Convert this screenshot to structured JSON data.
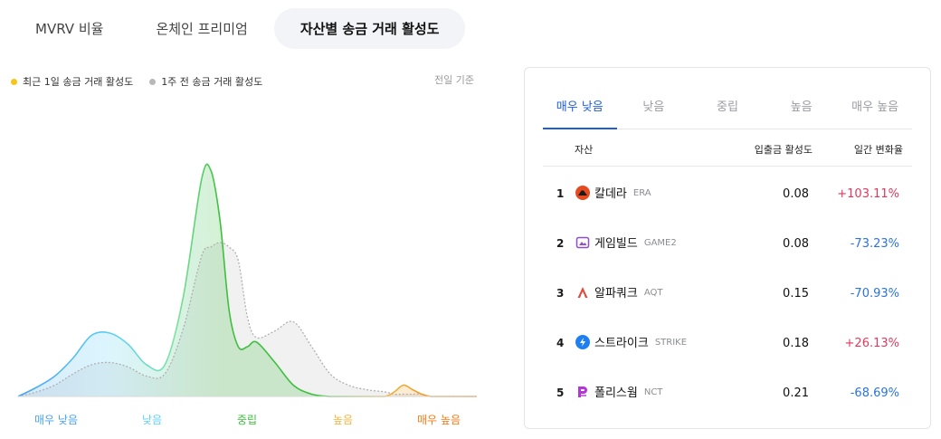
{
  "tabs": [
    {
      "label": "MVRV 비율"
    },
    {
      "label": "온체인 프리미엄"
    },
    {
      "label": "자산별 송금 거래 활성도"
    }
  ],
  "legend": {
    "current": {
      "label": "최근 1일 송금 거래 활성도",
      "color": "#f5c518"
    },
    "previous": {
      "label": "1주 전 송금 거래 활성도",
      "color": "#b8b8b8"
    }
  },
  "basis_label": "전일 기준",
  "chart_data": {
    "type": "area",
    "categories": [
      "매우 낮음",
      "낮음",
      "중립",
      "높음",
      "매우 높음"
    ],
    "category_colors": [
      "#4aa3f0",
      "#5fd2f5",
      "#3fbf3f",
      "#f0b43c",
      "#f07b14"
    ],
    "x": [
      0.0,
      0.04,
      0.08,
      0.12,
      0.16,
      0.2,
      0.24,
      0.28,
      0.32,
      0.36,
      0.4,
      0.42,
      0.44,
      0.46,
      0.48,
      0.5,
      0.52,
      0.56,
      0.6,
      0.64,
      0.68,
      0.72,
      0.76,
      0.8,
      0.82,
      0.84,
      0.86,
      0.88,
      0.9,
      0.94,
      1.0
    ],
    "series": [
      {
        "values": [
          0,
          4,
          9,
          17,
          27,
          28,
          23,
          14,
          14,
          44,
          96,
          100,
          78,
          38,
          22,
          22,
          24,
          15,
          5,
          1,
          0,
          0,
          0,
          0,
          2,
          5,
          3,
          1,
          0,
          0,
          0
        ],
        "color": "#5ce25c"
      },
      {
        "values": [
          0,
          2,
          5,
          10,
          14,
          15,
          13,
          9,
          10,
          30,
          62,
          66,
          68,
          66,
          60,
          35,
          26,
          29,
          33,
          22,
          10,
          5,
          3,
          2,
          1,
          1,
          1,
          1,
          0,
          0,
          0
        ],
        "color": "#b0b0b0"
      }
    ]
  },
  "panel": {
    "tabs": [
      "매우 낮음",
      "낮음",
      "중립",
      "높음",
      "매우 높음"
    ],
    "columns": {
      "asset": "자산",
      "activity": "입출금 활성도",
      "change": "일간 변화율"
    },
    "rows": [
      {
        "rank": "1",
        "name": "칼데라",
        "symbol": "ERA",
        "activity": "0.08",
        "change": "+103.11%",
        "icon": "caldera-icon",
        "icon_color": "#e84a1f",
        "change_color": "#e0395b"
      },
      {
        "rank": "2",
        "name": "게임빌드",
        "symbol": "GAME2",
        "activity": "0.08",
        "change": "-73.23%",
        "icon": "gamebuild-icon",
        "icon_color": "#8e4fc8",
        "change_color": "#2b73e0"
      },
      {
        "rank": "3",
        "name": "알파쿼크",
        "symbol": "AQT",
        "activity": "0.15",
        "change": "-70.93%",
        "icon": "alphaquark-icon",
        "icon_color": "#e24a3c",
        "change_color": "#2b73e0"
      },
      {
        "rank": "4",
        "name": "스트라이크",
        "symbol": "STRIKE",
        "activity": "0.18",
        "change": "+26.13%",
        "icon": "strike-icon",
        "icon_color": "#1e7ff0",
        "change_color": "#e0395b"
      },
      {
        "rank": "5",
        "name": "폴리스웜",
        "symbol": "NCT",
        "activity": "0.21",
        "change": "-68.69%",
        "icon": "polyswarm-icon",
        "icon_color": "#b535d8",
        "change_color": "#2b73e0"
      }
    ]
  }
}
